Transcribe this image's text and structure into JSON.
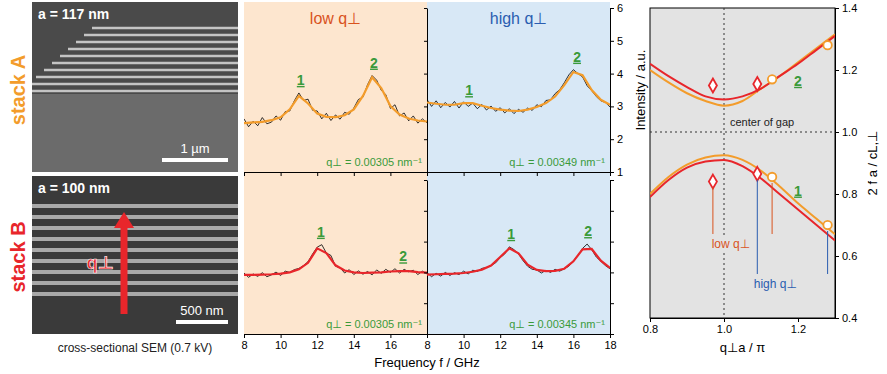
{
  "row_labels": [
    {
      "text": "stack A",
      "color": "#f39c2b"
    },
    {
      "text": "stack B",
      "color": "#e8262b"
    }
  ],
  "sem": {
    "caption": "cross-sectional SEM (0.7 kV)",
    "panels": [
      {
        "period": "a = 117 nm",
        "scale_bar": "1 µm"
      },
      {
        "period": "a = 100 nm",
        "scale_bar": "500 nm",
        "arrow_label": "q⊥"
      }
    ]
  },
  "spectra_axes": {
    "x_label": "Frequency f / GHz",
    "y_label": "Intensity / a.u."
  },
  "chart_data": [
    {
      "type": "line",
      "title": "low q⊥",
      "xlim": [
        8,
        18
      ],
      "xticks": [
        8,
        10,
        12,
        14,
        16
      ],
      "ylim": [
        1,
        6
      ],
      "yticks": [
        1,
        2,
        3,
        4,
        5,
        6
      ],
      "tick_labels": false,
      "annotations": [
        {
          "text": "q⊥ = 0.00305 nm⁻¹"
        }
      ],
      "peaks": [
        {
          "label": "1",
          "frequency": 11.1
        },
        {
          "label": "2",
          "frequency": 15.1
        }
      ],
      "series": [
        {
          "color": "#000000",
          "x": [
            8,
            8.25,
            8.5,
            8.75,
            9,
            9.25,
            9.5,
            9.75,
            10,
            10.25,
            10.5,
            10.75,
            11,
            11.25,
            11.5,
            11.75,
            12,
            12.25,
            12.5,
            12.75,
            13,
            13.25,
            13.5,
            13.75,
            14,
            14.25,
            14.5,
            14.75,
            15,
            15.25,
            15.5,
            15.75,
            16,
            16.25,
            16.5,
            16.75,
            17,
            17.25,
            17.5,
            17.75,
            18
          ],
          "values": [
            2.62,
            2.38,
            2.55,
            2.41,
            2.66,
            2.47,
            2.52,
            2.71,
            2.58,
            2.84,
            2.86,
            3.17,
            3.41,
            3.18,
            3.22,
            2.88,
            2.86,
            2.62,
            2.79,
            2.57,
            2.74,
            2.61,
            2.82,
            2.76,
            2.95,
            3.21,
            3.28,
            3.66,
            3.94,
            3.8,
            3.49,
            3.36,
            2.94,
            3.05,
            2.71,
            2.8,
            2.56,
            2.71,
            2.49,
            2.62,
            2.5
          ]
        },
        {
          "color": "#f39c2b",
          "x": [
            8,
            8.5,
            9,
            9.5,
            10,
            10.5,
            11,
            11.5,
            12,
            12.5,
            13,
            13.5,
            14,
            14.5,
            15,
            15.5,
            16,
            16.5,
            17,
            17.5,
            18
          ],
          "values": [
            2.49,
            2.51,
            2.53,
            2.58,
            2.67,
            2.91,
            3.32,
            3.09,
            2.78,
            2.68,
            2.67,
            2.73,
            2.91,
            3.32,
            3.89,
            3.56,
            3.01,
            2.75,
            2.63,
            2.57,
            2.54
          ]
        }
      ]
    },
    {
      "type": "line",
      "title": "high q⊥",
      "xlim": [
        8,
        18
      ],
      "xticks": [
        8,
        10,
        12,
        14,
        16,
        18
      ],
      "ylim": [
        1,
        6
      ],
      "yticks": [
        1,
        2,
        3,
        4,
        5,
        6
      ],
      "tick_labels": "y",
      "annotations": [
        {
          "text": "q⊥ = 0.00349 nm⁻¹"
        }
      ],
      "peaks": [
        {
          "label": "1",
          "frequency": 10.3
        },
        {
          "label": "2",
          "frequency": 16.2
        }
      ],
      "series": [
        {
          "color": "#000000",
          "x": [
            8,
            8.25,
            8.5,
            8.75,
            9,
            9.25,
            9.5,
            9.75,
            10,
            10.25,
            10.5,
            10.75,
            11,
            11.25,
            11.5,
            11.75,
            12,
            12.25,
            12.5,
            12.75,
            13,
            13.25,
            13.5,
            13.75,
            14,
            14.25,
            14.5,
            14.75,
            15,
            15.25,
            15.5,
            15.75,
            16,
            16.25,
            16.5,
            16.75,
            17,
            17.25,
            17.5,
            17.75,
            18
          ],
          "values": [
            3.21,
            3.0,
            3.17,
            2.96,
            3.12,
            2.98,
            3.15,
            2.95,
            3.14,
            3.0,
            3.1,
            2.93,
            3.06,
            2.89,
            3.01,
            2.85,
            2.96,
            2.8,
            2.93,
            2.78,
            2.91,
            2.82,
            2.95,
            2.88,
            3.05,
            2.99,
            3.18,
            3.2,
            3.39,
            3.51,
            3.72,
            3.96,
            4.12,
            4.0,
            3.9,
            3.63,
            3.48,
            3.3,
            3.17,
            3.12,
            2.98
          ]
        },
        {
          "color": "#f39c2b",
          "x": [
            8,
            8.5,
            9,
            9.5,
            10,
            10.5,
            11,
            11.5,
            12,
            12.5,
            13,
            13.5,
            14,
            14.5,
            15,
            15.5,
            16,
            16.5,
            17,
            17.5,
            18
          ],
          "values": [
            3.12,
            3.08,
            3.05,
            3.05,
            3.1,
            3.1,
            3.02,
            2.95,
            2.9,
            2.87,
            2.86,
            2.9,
            2.98,
            3.1,
            3.3,
            3.65,
            4.05,
            3.95,
            3.5,
            3.2,
            3.05
          ]
        }
      ]
    },
    {
      "type": "line",
      "xlim": [
        8,
        18
      ],
      "xticks": [
        8,
        10,
        12,
        14,
        16
      ],
      "ylim": [
        1,
        6
      ],
      "yticks": [
        1,
        2,
        3,
        4,
        5,
        6
      ],
      "tick_labels": "x",
      "annotations": [
        {
          "text": "q⊥ = 0.00305 nm⁻¹"
        }
      ],
      "peaks": [
        {
          "label": "1",
          "frequency": 12.2
        },
        {
          "label": "2",
          "frequency": 16.7
        }
      ],
      "series": [
        {
          "color": "#000000",
          "x": [
            8,
            8.25,
            8.5,
            8.75,
            9,
            9.25,
            9.5,
            9.75,
            10,
            10.25,
            10.5,
            10.75,
            11,
            11.25,
            11.5,
            11.75,
            12,
            12.25,
            12.5,
            12.75,
            13,
            13.25,
            13.5,
            13.75,
            14,
            14.25,
            14.5,
            14.75,
            15,
            15.25,
            15.5,
            15.75,
            16,
            16.25,
            16.5,
            16.75,
            17,
            17.25,
            17.5,
            17.75,
            18
          ],
          "values": [
            2.98,
            2.84,
            2.95,
            2.87,
            2.99,
            2.86,
            2.92,
            3.01,
            2.9,
            3.04,
            3.0,
            3.09,
            3.13,
            3.22,
            3.35,
            3.6,
            3.82,
            3.9,
            3.63,
            3.55,
            3.2,
            3.15,
            2.98,
            3.09,
            2.93,
            3.05,
            2.94,
            3.03,
            2.92,
            3.08,
            2.97,
            3.1,
            3.0,
            3.12,
            2.98,
            3.1,
            3.02,
            3.07,
            2.93,
            3.04,
            2.95
          ]
        },
        {
          "color": "#e8262b",
          "x": [
            8,
            8.5,
            9,
            9.5,
            10,
            10.5,
            11,
            11.5,
            12,
            12.5,
            13,
            13.5,
            14,
            14.5,
            15,
            15.5,
            16,
            16.5,
            17,
            17.5,
            18
          ],
          "values": [
            2.92,
            2.92,
            2.93,
            2.94,
            2.96,
            3.0,
            3.1,
            3.31,
            3.78,
            3.63,
            3.23,
            3.06,
            3.0,
            2.98,
            2.99,
            3.0,
            3.03,
            3.04,
            3.04,
            3.01,
            2.99
          ]
        }
      ]
    },
    {
      "type": "line",
      "xlim": [
        8,
        18
      ],
      "xticks": [
        8,
        10,
        12,
        14,
        16,
        18
      ],
      "ylim": [
        1,
        6
      ],
      "yticks": [
        1,
        2,
        3,
        4,
        5,
        6
      ],
      "tick_labels": "x",
      "annotations": [
        {
          "text": "q⊥ = 0.00345 nm⁻¹"
        }
      ],
      "peaks": [
        {
          "label": "1",
          "frequency": 12.6
        },
        {
          "label": "2",
          "frequency": 16.8
        }
      ],
      "series": [
        {
          "color": "#000000",
          "x": [
            8,
            8.25,
            8.5,
            8.75,
            9,
            9.25,
            9.5,
            9.75,
            10,
            10.25,
            10.5,
            10.75,
            11,
            11.25,
            11.5,
            11.75,
            12,
            12.25,
            12.5,
            12.75,
            13,
            13.25,
            13.5,
            13.75,
            14,
            14.25,
            14.5,
            14.75,
            15,
            15.25,
            15.5,
            15.75,
            16,
            16.25,
            16.5,
            16.75,
            17,
            17.25,
            17.5,
            17.75,
            18
          ],
          "values": [
            2.99,
            2.86,
            2.97,
            2.88,
            3.0,
            2.9,
            2.99,
            2.93,
            3.04,
            2.95,
            3.07,
            3.03,
            3.13,
            3.16,
            3.22,
            3.31,
            3.48,
            3.6,
            3.83,
            3.74,
            3.6,
            3.38,
            3.2,
            3.1,
            3.08,
            2.98,
            3.07,
            3.0,
            3.1,
            3.04,
            3.12,
            3.2,
            3.38,
            3.55,
            3.78,
            3.92,
            3.74,
            3.5,
            3.36,
            3.22,
            3.12
          ]
        },
        {
          "color": "#e8262b",
          "x": [
            8,
            8.5,
            9,
            9.5,
            10,
            10.5,
            11,
            11.5,
            12,
            12.5,
            13,
            13.5,
            14,
            14.5,
            15,
            15.5,
            16,
            16.5,
            17,
            17.5,
            18
          ],
          "values": [
            2.93,
            2.94,
            2.95,
            2.96,
            2.98,
            3.02,
            3.09,
            3.22,
            3.5,
            3.78,
            3.62,
            3.25,
            3.08,
            3.04,
            3.05,
            3.12,
            3.36,
            3.75,
            3.76,
            3.38,
            3.15
          ]
        }
      ]
    },
    {
      "type": "line",
      "x_label": "q⊥a / π",
      "y_label": "2 f a / cL,⊥",
      "xlim": [
        0.8,
        1.3
      ],
      "xticks": [
        0.8,
        {
          "value": 1,
          "label": "1.0"
        },
        1.2
      ],
      "ylim": [
        0.4,
        1.4
      ],
      "yticks": [
        0.4,
        0.6,
        0.8,
        {
          "value": 1,
          "label": "1.0"
        },
        1.2,
        1.4
      ],
      "gap_center": {
        "x": 1,
        "y": 1,
        "label": "center of gap"
      },
      "annotations": [
        {
          "text": "low q⊥",
          "color": "#d9531e"
        },
        {
          "text": "high q⊥",
          "color": "#2a5db0"
        }
      ],
      "series": [
        {
          "type": "line",
          "color": "#f39c2b",
          "x": [
            0.8,
            0.85,
            0.9,
            0.95,
            1,
            1.05,
            1.1,
            1.15,
            1.2,
            1.25,
            1.3
          ],
          "values": [
            0.8,
            0.855,
            0.895,
            0.918,
            0.925,
            0.91,
            0.875,
            0.825,
            0.77,
            0.72,
            0.67
          ]
        },
        {
          "type": "line",
          "color": "#e8262b",
          "label": "1",
          "x": [
            0.8,
            0.85,
            0.9,
            0.95,
            1,
            1.05,
            1.1,
            1.15,
            1.2,
            1.25,
            1.3
          ],
          "values": [
            0.79,
            0.845,
            0.885,
            0.905,
            0.91,
            0.89,
            0.85,
            0.8,
            0.75,
            0.7,
            0.65
          ]
        },
        {
          "type": "line",
          "color": "#f39c2b",
          "x": [
            0.8,
            0.85,
            0.9,
            0.95,
            1,
            1.05,
            1.1,
            1.15,
            1.2,
            1.25,
            1.3
          ],
          "values": [
            1.2,
            1.16,
            1.125,
            1.1,
            1.085,
            1.1,
            1.14,
            1.18,
            1.225,
            1.27,
            1.315
          ]
        },
        {
          "type": "line",
          "color": "#e8262b",
          "label": "2",
          "x": [
            0.8,
            0.85,
            0.9,
            0.95,
            1,
            1.05,
            1.1,
            1.15,
            1.2,
            1.25,
            1.3
          ],
          "values": [
            1.22,
            1.18,
            1.145,
            1.115,
            1.105,
            1.115,
            1.14,
            1.18,
            1.22,
            1.265,
            1.31
          ]
        },
        {
          "type": "scatter",
          "marker": "circle",
          "color": "#f39c2b",
          "x": [
            1.13,
            1.28
          ],
          "values": [
            0.855,
            0.7
          ]
        },
        {
          "type": "scatter",
          "marker": "circle",
          "color": "#f39c2b",
          "x": [
            1.13,
            1.28
          ],
          "values": [
            1.17,
            1.28
          ]
        },
        {
          "type": "scatter",
          "marker": "diamond",
          "color": "#e8262b",
          "x": [
            0.97,
            1.09
          ],
          "values": [
            0.84,
            0.865
          ]
        },
        {
          "type": "scatter",
          "marker": "diamond",
          "color": "#e8262b",
          "x": [
            0.97,
            1.09
          ],
          "values": [
            1.15,
            1.155
          ]
        }
      ]
    }
  ]
}
